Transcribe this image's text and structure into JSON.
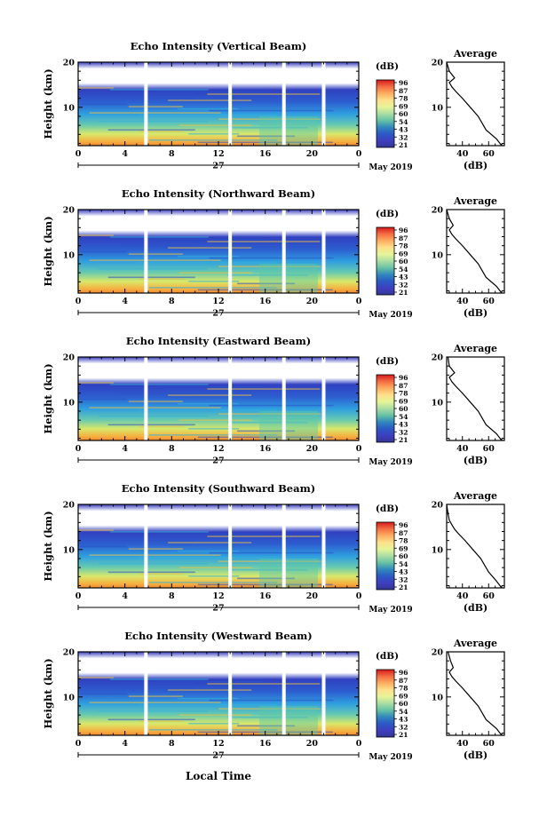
{
  "figure": {
    "time_label": "Local Time",
    "day_label": "27",
    "month_label": "May 2019",
    "colorbar_unit": "(dB)",
    "colorbar_ticks": [
      "96",
      "87",
      "78",
      "69",
      "60",
      "54",
      "43",
      "32",
      "21"
    ],
    "colorbar_colors": [
      "#d7191c",
      "#f46d43",
      "#fdae61",
      "#fee08b",
      "#e6f598",
      "#abdda4",
      "#66c2a5",
      "#3288bd",
      "#2b59c3",
      "#3f3fbf",
      "#313695"
    ]
  },
  "chart_data": [
    {
      "type": "heatmap",
      "title": "Echo Intensity (Vertical Beam)",
      "ylabel": "Height (km)",
      "xlim": [
        0,
        24
      ],
      "ylim": [
        1.5,
        20
      ],
      "xticks": [
        "0",
        "4",
        "8",
        "12",
        "16",
        "20",
        "0"
      ],
      "yticks": [
        "10",
        "20"
      ],
      "gap_hours": [
        5.8,
        13.0,
        17.6,
        21.0
      ],
      "side_profile": {
        "title": "Average",
        "xlabel": "(dB)",
        "xticks": [
          "40",
          "60"
        ],
        "yticks": [
          "10",
          "20"
        ],
        "xlim": [
          28,
          72
        ],
        "x": [
          70,
          66,
          58,
          52,
          46,
          40,
          35,
          32,
          30,
          34,
          30,
          28
        ],
        "y": [
          1.5,
          3,
          5,
          8,
          10,
          12,
          13.5,
          14.5,
          15.5,
          16.5,
          18,
          20
        ]
      }
    },
    {
      "type": "heatmap",
      "title": "Echo Intensity (Northward Beam)",
      "ylabel": "Height (km)",
      "xlim": [
        0,
        24
      ],
      "ylim": [
        1.5,
        20
      ],
      "xticks": [
        "0",
        "4",
        "8",
        "12",
        "16",
        "20",
        "0"
      ],
      "yticks": [
        "10",
        "20"
      ],
      "gap_hours": [
        5.8,
        13.0,
        17.6,
        21.0
      ],
      "side_profile": {
        "title": "Average",
        "xlabel": "(dB)",
        "xticks": [
          "40",
          "60"
        ],
        "yticks": [
          "10",
          "20"
        ],
        "xlim": [
          28,
          72
        ],
        "x": [
          70,
          66,
          58,
          52,
          46,
          40,
          35,
          32,
          30,
          33,
          30,
          28
        ],
        "y": [
          1.5,
          3,
          5,
          8,
          10,
          12,
          13.5,
          14.5,
          15.5,
          16.5,
          18,
          20
        ]
      }
    },
    {
      "type": "heatmap",
      "title": "Echo Intensity (Eastward Beam)",
      "ylabel": "Height (km)",
      "xlim": [
        0,
        24
      ],
      "ylim": [
        1.5,
        20
      ],
      "xticks": [
        "0",
        "4",
        "8",
        "12",
        "16",
        "20",
        "0"
      ],
      "yticks": [
        "10",
        "20"
      ],
      "gap_hours": [
        5.8,
        13.0,
        17.6,
        21.0
      ],
      "side_profile": {
        "title": "Average",
        "xlabel": "(dB)",
        "xticks": [
          "40",
          "60"
        ],
        "yticks": [
          "10",
          "20"
        ],
        "xlim": [
          28,
          72
        ],
        "x": [
          70,
          66,
          58,
          52,
          46,
          40,
          35,
          32,
          30,
          34,
          30,
          29
        ],
        "y": [
          1.5,
          3,
          5,
          8,
          10,
          12,
          13.5,
          14.5,
          15.5,
          16.5,
          18,
          20
        ]
      }
    },
    {
      "type": "heatmap",
      "title": "Echo Intensity (Southward Beam)",
      "ylabel": "Height (km)",
      "xlim": [
        0,
        24
      ],
      "ylim": [
        1.5,
        20
      ],
      "xticks": [
        "0",
        "4",
        "8",
        "12",
        "16",
        "20",
        "0"
      ],
      "yticks": [
        "10",
        "20"
      ],
      "gap_hours": [
        5.8,
        13.0,
        17.6,
        21.0
      ],
      "side_profile": {
        "title": "Average",
        "xlabel": "(dB)",
        "xticks": [
          "40",
          "60"
        ],
        "yticks": [
          "10",
          "20"
        ],
        "xlim": [
          28,
          72
        ],
        "x": [
          70,
          66,
          60,
          54,
          48,
          42,
          37,
          34,
          32,
          30,
          29,
          28
        ],
        "y": [
          1.5,
          3,
          5,
          8,
          10,
          12,
          13.5,
          14.5,
          15.5,
          16.5,
          18,
          20
        ]
      }
    },
    {
      "type": "heatmap",
      "title": "Echo Intensity (Westward Beam)",
      "ylabel": "Height (km)",
      "xlim": [
        0,
        24
      ],
      "ylim": [
        1.5,
        20
      ],
      "xticks": [
        "0",
        "4",
        "8",
        "12",
        "16",
        "20",
        "0"
      ],
      "yticks": [
        "10",
        "20"
      ],
      "gap_hours": [
        5.8,
        13.0,
        17.6,
        21.0
      ],
      "side_profile": {
        "title": "Average",
        "xlabel": "(dB)",
        "xticks": [
          "40",
          "60"
        ],
        "yticks": [
          "10",
          "20"
        ],
        "xlim": [
          28,
          72
        ],
        "x": [
          70,
          66,
          58,
          52,
          46,
          40,
          35,
          32,
          30,
          33,
          31,
          29
        ],
        "y": [
          1.5,
          3,
          5,
          8,
          10,
          12,
          13.5,
          14.5,
          15.5,
          16.5,
          18,
          20
        ]
      }
    }
  ]
}
